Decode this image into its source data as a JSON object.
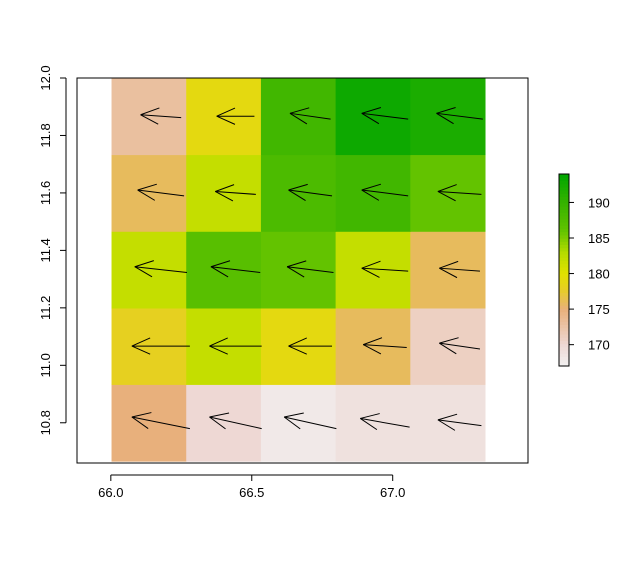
{
  "chart_data": {
    "type": "heatmap",
    "title": "",
    "xlabel": "",
    "ylabel": "",
    "xlim": [
      65.88,
      67.48
    ],
    "ylim": [
      10.66,
      12.0
    ],
    "x_centers": [
      66.135,
      66.4,
      66.665,
      66.93,
      67.195
    ],
    "y_centers": [
      10.8,
      11.067,
      11.333,
      11.6,
      11.867
    ],
    "cell_width": 0.265,
    "cell_height": 0.267,
    "x_ticks": [
      66.0,
      66.5,
      67.0
    ],
    "x_tick_labels": [
      "66.0",
      "66.5",
      "67.0"
    ],
    "y_ticks": [
      10.8,
      11.0,
      11.2,
      11.4,
      11.6,
      11.8,
      12.0
    ],
    "y_tick_labels": [
      "10.8",
      "11.0",
      "11.2",
      "11.4",
      "11.6",
      "11.8",
      "12.0"
    ],
    "values": [
      [
        175,
        170,
        168,
        169,
        169
      ],
      [
        178,
        182,
        179,
        176,
        171
      ],
      [
        182,
        187,
        186,
        182,
        176
      ],
      [
        176,
        182,
        188,
        189,
        186
      ],
      [
        173,
        179,
        189,
        193,
        192
      ]
    ],
    "arrows": [
      [
        [
          -1.0,
          0.2
        ],
        [
          -0.9,
          0.2
        ],
        [
          -0.9,
          0.2
        ],
        [
          -0.85,
          0.15
        ],
        [
          -0.75,
          0.1
        ]
      ],
      [
        [
          -1.0,
          0.0
        ],
        [
          -0.9,
          0.0
        ],
        [
          -0.75,
          0.0
        ],
        [
          -0.75,
          0.05
        ],
        [
          -0.7,
          0.1
        ]
      ],
      [
        [
          -0.9,
          0.1
        ],
        [
          -0.85,
          0.1
        ],
        [
          -0.8,
          0.1
        ],
        [
          -0.8,
          0.05
        ],
        [
          -0.7,
          0.05
        ]
      ],
      [
        [
          -0.8,
          0.1
        ],
        [
          -0.7,
          0.05
        ],
        [
          -0.75,
          0.1
        ],
        [
          -0.8,
          0.1
        ],
        [
          -0.75,
          0.05
        ]
      ],
      [
        [
          -0.7,
          0.05
        ],
        [
          -0.65,
          0.0
        ],
        [
          -0.7,
          0.1
        ],
        [
          -0.8,
          0.1
        ],
        [
          -0.8,
          0.1
        ]
      ]
    ],
    "colorbar": {
      "min": 167,
      "max": 194,
      "ticks": [
        170,
        175,
        180,
        185,
        190
      ],
      "tick_labels": [
        "170",
        "175",
        "180",
        "185",
        "190"
      ]
    },
    "colors": {
      "stops": [
        [
          167,
          "#f2f2f2"
        ],
        [
          170,
          "#eed8d4"
        ],
        [
          175,
          "#e8b07c"
        ],
        [
          178,
          "#e6d020"
        ],
        [
          180,
          "#e2e200"
        ],
        [
          183,
          "#b5dc00"
        ],
        [
          186,
          "#63c300"
        ],
        [
          190,
          "#35b300"
        ],
        [
          194,
          "#00a600"
        ]
      ]
    },
    "grid": false,
    "legend": "right"
  }
}
